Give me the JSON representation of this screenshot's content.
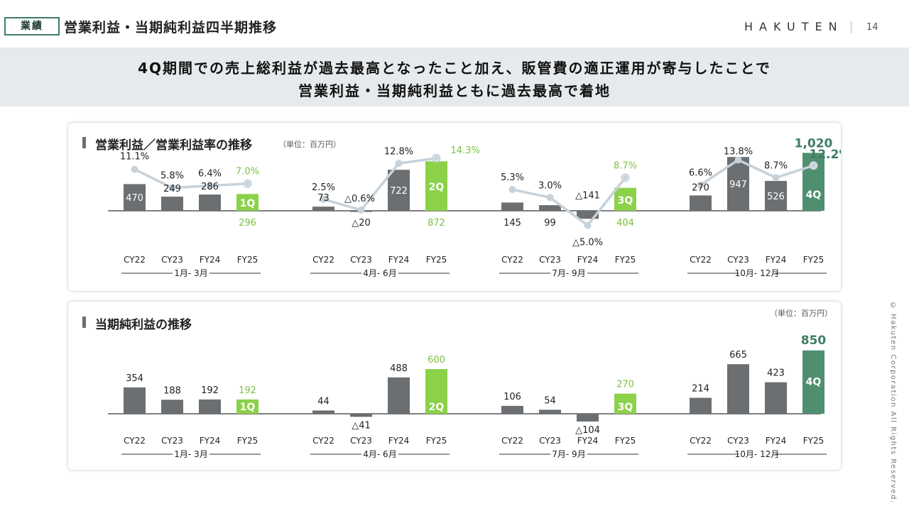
{
  "header": {
    "tag": "業績",
    "title": "営業利益・当期純利益四半期推移",
    "logo": "HAKUTEN",
    "page_number": "14"
  },
  "banner": {
    "line1": "4Q期間での売上総利益が過去最高となったこと加え、販管費の適正運用が寄与したことで",
    "line2": "営業利益・当期純利益ともに過去最高で着地"
  },
  "copyright": "© Hakuten Corporation All Rights Reserved.",
  "colors": {
    "gray_bar": "#6b6f72",
    "green_bar": "#8cd14a",
    "dark_green_bar": "#4f8f70",
    "line": "#c6d1d9",
    "green_text": "#7dc043",
    "dark_green_text": "#3f7d62"
  },
  "chart_data": [
    {
      "type": "bar",
      "title": "営業利益／営業利益率の推移",
      "unit": "（単位：百万円）",
      "groups": [
        {
          "period": "1月- 3月",
          "highlight": "1Q",
          "categories": [
            "CY22",
            "CY23",
            "FY24",
            "FY25"
          ],
          "values": [
            470,
            249,
            286,
            296
          ],
          "value_labels": [
            "470",
            "249",
            "286",
            "296"
          ],
          "margins": [
            11.1,
            5.8,
            6.4,
            7.0
          ],
          "margin_labels": [
            "11.1%",
            "5.8%",
            "6.4%",
            "7.0%"
          ]
        },
        {
          "period": "4月- 6月",
          "highlight": "2Q",
          "categories": [
            "CY22",
            "CY23",
            "FY24",
            "FY25"
          ],
          "values": [
            73,
            -20,
            722,
            872
          ],
          "value_labels": [
            "73",
            "△20",
            "722",
            "872"
          ],
          "margins": [
            2.5,
            -0.6,
            12.8,
            14.3
          ],
          "margin_labels": [
            "2.5%",
            "△0.6%",
            "12.8%",
            "14.3%"
          ]
        },
        {
          "period": "7月- 9月",
          "highlight": "3Q",
          "categories": [
            "CY22",
            "CY23",
            "FY24",
            "FY25"
          ],
          "values": [
            145,
            99,
            -141,
            404
          ],
          "value_labels": [
            "145",
            "99",
            "△141",
            "404"
          ],
          "margins": [
            5.3,
            3.0,
            -5.0,
            8.7
          ],
          "margin_labels": [
            "5.3%",
            "3.0%",
            "△5.0%",
            "8.7%"
          ]
        },
        {
          "period": "10月- 12月",
          "highlight": "4Q",
          "categories": [
            "CY22",
            "CY23",
            "FY24",
            "FY25"
          ],
          "values": [
            270,
            947,
            526,
            1020
          ],
          "value_labels": [
            "270",
            "947",
            "526",
            "1,020"
          ],
          "margins": [
            6.6,
            13.8,
            8.7,
            12.2
          ],
          "margin_labels": [
            "6.6%",
            "13.8%",
            "8.7%",
            "12.2%"
          ]
        }
      ]
    },
    {
      "type": "bar",
      "title": "当期純利益の推移",
      "unit": "（単位：百万円）",
      "groups": [
        {
          "period": "1月- 3月",
          "highlight": "1Q",
          "categories": [
            "CY22",
            "CY23",
            "FY24",
            "FY25"
          ],
          "values": [
            354,
            188,
            192,
            192
          ],
          "value_labels": [
            "354",
            "188",
            "192",
            "192"
          ]
        },
        {
          "period": "4月- 6月",
          "highlight": "2Q",
          "categories": [
            "CY22",
            "CY23",
            "FY24",
            "FY25"
          ],
          "values": [
            44,
            -41,
            488,
            600
          ],
          "value_labels": [
            "44",
            "△41",
            "488",
            "600"
          ]
        },
        {
          "period": "7月- 9月",
          "highlight": "3Q",
          "categories": [
            "CY22",
            "CY23",
            "FY24",
            "FY25"
          ],
          "values": [
            106,
            54,
            -104,
            270
          ],
          "value_labels": [
            "106",
            "54",
            "△104",
            "270"
          ]
        },
        {
          "period": "10月- 12月",
          "highlight": "4Q",
          "categories": [
            "CY22",
            "CY23",
            "FY24",
            "FY25"
          ],
          "values": [
            214,
            665,
            423,
            850
          ],
          "value_labels": [
            "214",
            "665",
            "423",
            "850"
          ]
        }
      ]
    }
  ]
}
